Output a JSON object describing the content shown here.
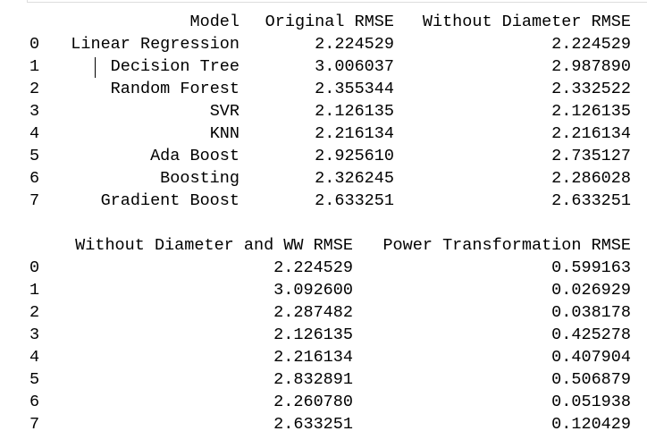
{
  "tables": [
    {
      "columns": [
        "Model",
        "Original RMSE",
        "Without Diameter RMSE"
      ],
      "index": [
        "0",
        "1",
        "2",
        "3",
        "4",
        "5",
        "6",
        "7"
      ],
      "rows": [
        [
          "Linear Regression",
          "2.224529",
          "2.224529"
        ],
        [
          "Decision Tree",
          "3.006037",
          "2.987890"
        ],
        [
          "Random Forest",
          "2.355344",
          "2.332522"
        ],
        [
          "SVR",
          "2.126135",
          "2.126135"
        ],
        [
          "KNN",
          "2.216134",
          "2.216134"
        ],
        [
          "Ada Boost",
          "2.925610",
          "2.735127"
        ],
        [
          "Boosting",
          "2.326245",
          "2.286028"
        ],
        [
          "Gradient Boost",
          "2.633251",
          "2.633251"
        ]
      ]
    },
    {
      "columns": [
        "Without Diameter and WW RMSE",
        "Power Transformation RMSE"
      ],
      "index": [
        "0",
        "1",
        "2",
        "3",
        "4",
        "5",
        "6",
        "7"
      ],
      "rows": [
        [
          "2.224529",
          "0.599163"
        ],
        [
          "3.092600",
          "0.026929"
        ],
        [
          "2.287482",
          "0.038178"
        ],
        [
          "2.126135",
          "0.425278"
        ],
        [
          "2.216134",
          "0.407904"
        ],
        [
          "2.832891",
          "0.506879"
        ],
        [
          "2.260780",
          "0.051938"
        ],
        [
          "2.633251",
          "0.120429"
        ]
      ]
    }
  ]
}
